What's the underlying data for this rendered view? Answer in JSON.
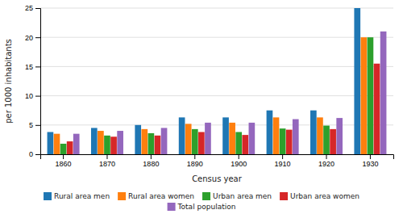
{
  "chart_data": {
    "type": "bar",
    "xlabel": "Census year",
    "ylabel": "per 1000 inhabitants",
    "categories": [
      "1860",
      "1870",
      "1880",
      "1890",
      "1900",
      "1910",
      "1920",
      "1930"
    ],
    "series": [
      {
        "name": "Rural area men",
        "values": [
          3.8,
          4.5,
          5.0,
          6.3,
          6.3,
          7.5,
          7.5,
          25.0
        ]
      },
      {
        "name": "Rural area women",
        "values": [
          3.5,
          4.0,
          4.3,
          5.2,
          5.4,
          6.3,
          6.3,
          20.0
        ]
      },
      {
        "name": "Urban area men",
        "values": [
          1.8,
          3.2,
          3.6,
          4.3,
          3.8,
          4.4,
          4.9,
          20.0
        ]
      },
      {
        "name": "Urban area women",
        "values": [
          2.2,
          3.0,
          3.2,
          3.8,
          3.3,
          4.2,
          4.3,
          15.5
        ]
      },
      {
        "name": "Total population",
        "values": [
          3.5,
          4.0,
          4.5,
          5.4,
          5.4,
          6.0,
          6.2,
          21.0
        ]
      }
    ],
    "ylim": [
      0,
      25
    ],
    "yticks": [
      0,
      5,
      10,
      15,
      20,
      25
    ],
    "grid": true,
    "legend": "bottom"
  }
}
